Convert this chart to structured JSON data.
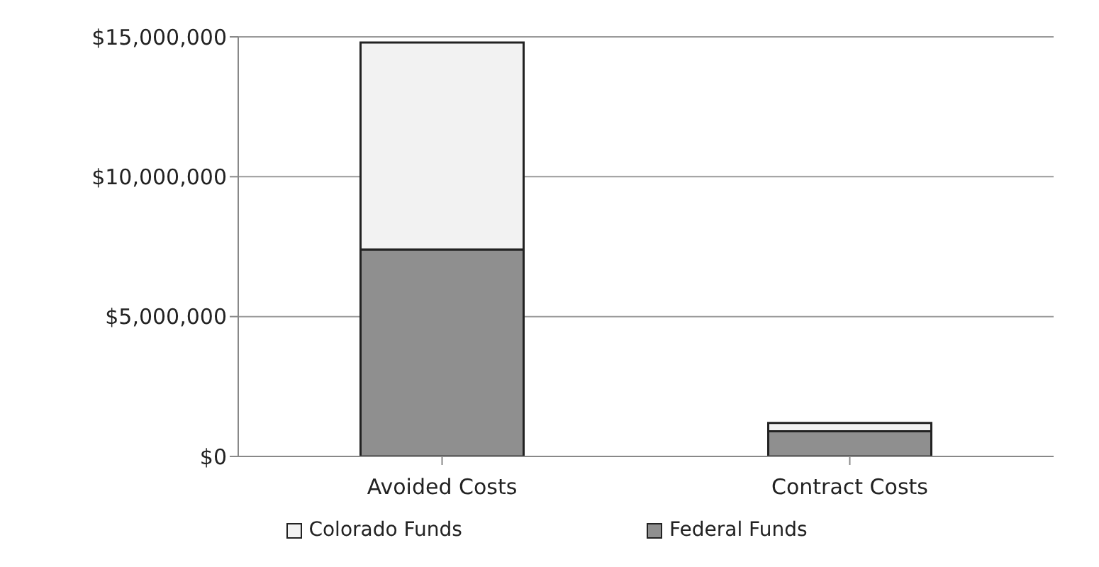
{
  "chart_data": {
    "type": "bar",
    "stacked": true,
    "categories": [
      "Avoided Costs",
      "Contract Costs"
    ],
    "series": [
      {
        "name": "Federal Funds",
        "color": "#8f8f8f",
        "values": [
          7400000,
          900000
        ]
      },
      {
        "name": "Colorado Funds",
        "color": "#f2f2f2",
        "values": [
          7400000,
          300000
        ]
      }
    ],
    "ylim": [
      0,
      15000000
    ],
    "yticks": [
      {
        "value": 0,
        "label": "$0"
      },
      {
        "value": 5000000,
        "label": "$5,000,000"
      },
      {
        "value": 10000000,
        "label": "$10,000,000"
      },
      {
        "value": 15000000,
        "label": "$15,000,000"
      }
    ],
    "grid": "y",
    "legend": "bottom"
  }
}
